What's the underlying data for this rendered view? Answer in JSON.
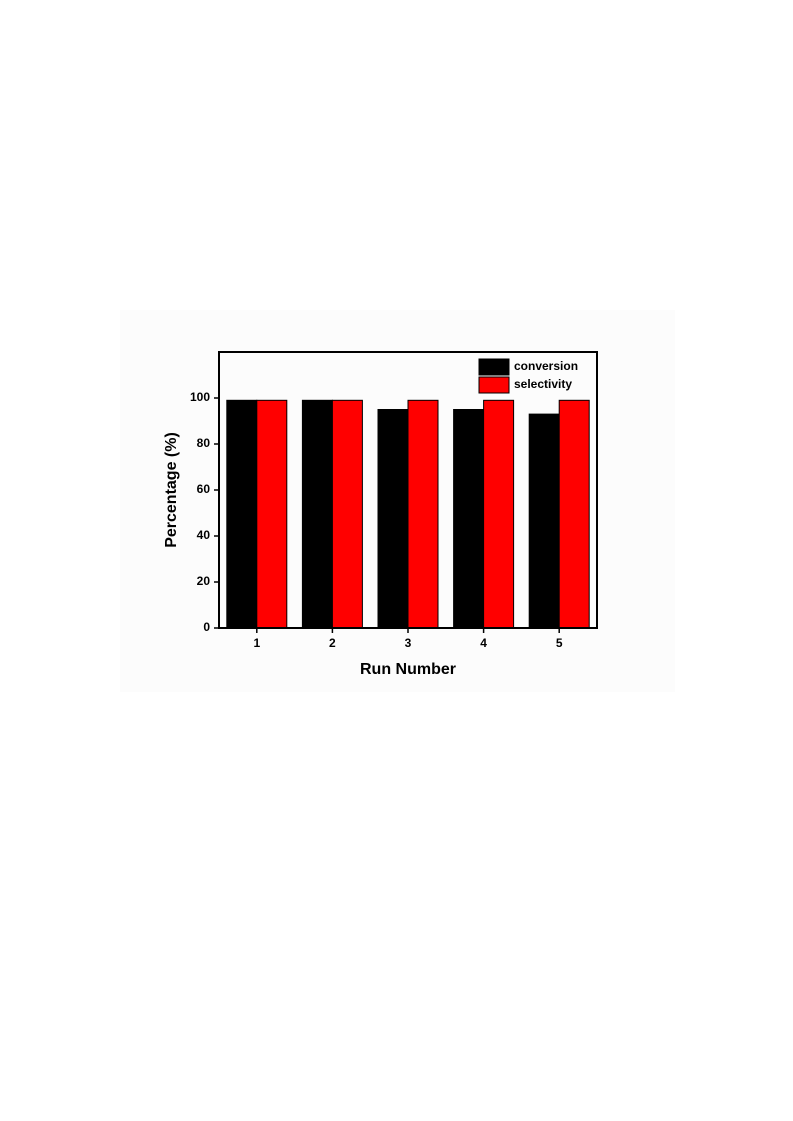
{
  "chart_data": {
    "type": "bar",
    "x_label": "Run Number",
    "y_label": "Percentage (%)",
    "categories": [
      "1",
      "2",
      "3",
      "4",
      "5"
    ],
    "series": [
      {
        "name": "conversion",
        "color": "#000000",
        "values": [
          99,
          99,
          95,
          95,
          93
        ]
      },
      {
        "name": "selectivity",
        "color": "#ff0000",
        "values": [
          99,
          99,
          99,
          99,
          99
        ]
      }
    ],
    "ylim": [
      0,
      120
    ],
    "yticks": [
      0,
      20,
      40,
      60,
      80,
      100
    ],
    "legend": "upper right"
  }
}
